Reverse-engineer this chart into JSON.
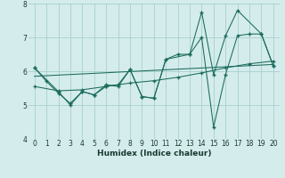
{
  "xlabel": "Humidex (Indice chaleur)",
  "bg_color": "#d4ecec",
  "grid_color": "#aacfcf",
  "line_color": "#1a6b5a",
  "xlim": [
    -0.5,
    20.5
  ],
  "ylim": [
    4,
    8
  ],
  "xticks": [
    0,
    1,
    2,
    3,
    4,
    5,
    6,
    7,
    8,
    9,
    10,
    11,
    12,
    13,
    14,
    15,
    16,
    17,
    18,
    19,
    20
  ],
  "yticks": [
    4,
    5,
    6,
    7,
    8
  ],
  "series_zigzag1": {
    "x": [
      0,
      1,
      2,
      3,
      4,
      5,
      6,
      7,
      8,
      9,
      10,
      11,
      12,
      13,
      14,
      15,
      16,
      17,
      18,
      19,
      20
    ],
    "y": [
      6.1,
      5.7,
      5.35,
      5.05,
      5.4,
      5.3,
      5.6,
      5.55,
      6.05,
      5.25,
      5.2,
      6.35,
      6.5,
      6.5,
      7.0,
      4.35,
      5.9,
      7.05,
      7.1,
      7.1,
      6.15
    ]
  },
  "series_zigzag2": {
    "x": [
      0,
      2,
      3,
      4,
      5,
      6,
      7,
      8,
      9,
      10,
      11,
      13,
      14,
      15,
      16,
      17,
      19,
      20
    ],
    "y": [
      6.1,
      5.4,
      5.0,
      5.4,
      5.3,
      5.55,
      5.6,
      6.05,
      5.25,
      5.2,
      6.35,
      6.5,
      7.75,
      5.9,
      7.05,
      7.8,
      7.1,
      6.15
    ]
  },
  "series_trend1": {
    "x": [
      0,
      2,
      4,
      6,
      8,
      10,
      12,
      14,
      16,
      18,
      20
    ],
    "y": [
      5.55,
      5.42,
      5.45,
      5.55,
      5.65,
      5.72,
      5.82,
      5.95,
      6.1,
      6.22,
      6.3
    ]
  },
  "series_trend2": {
    "x": [
      0,
      20
    ],
    "y": [
      5.85,
      6.2
    ]
  }
}
